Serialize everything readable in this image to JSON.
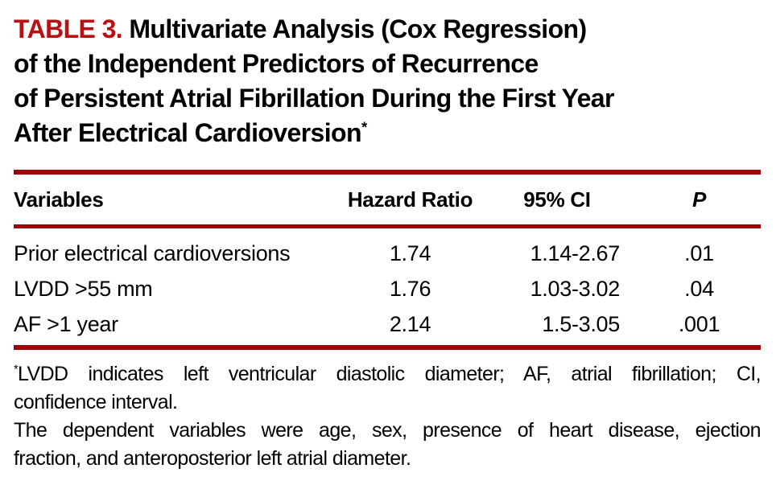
{
  "title": {
    "label": "TABLE 3.",
    "line1_rest": "Multivariate Analysis (Cox Regression)",
    "line2": "of the Independent Predictors of Recurrence",
    "line3": "of Persistent Atrial Fibrillation During the First Year",
    "line4": "After Electrical Cardioversion",
    "footnote_marker": "*"
  },
  "colors": {
    "accent_red": "#b81114",
    "rule_red": "#a00008"
  },
  "table": {
    "columns": [
      "Variables",
      "Hazard Ratio",
      "95% CI",
      "P"
    ],
    "rows": [
      {
        "variable": "Prior electrical cardioversions",
        "hazard_ratio": "1.74",
        "ci_95": "1.14-2.67",
        "p": ".01"
      },
      {
        "variable": "LVDD >55 mm",
        "hazard_ratio": "1.76",
        "ci_95": "1.03-3.02",
        "p": ".04"
      },
      {
        "variable": "AF >1 year",
        "hazard_ratio": "2.14",
        "ci_95": "1.5-3.05",
        "p": ".001"
      }
    ]
  },
  "footnotes": {
    "marker": "*",
    "abbrev_line1": "LVDD indicates left ventricular diastolic diameter; AF, atrial fibrillation; CI,",
    "abbrev_line2": "confidence interval.",
    "dependent_line1": "The dependent variables were age, sex, presence of heart disease, ejection",
    "dependent_line2": "fraction, and anteroposterior left atrial diameter."
  }
}
